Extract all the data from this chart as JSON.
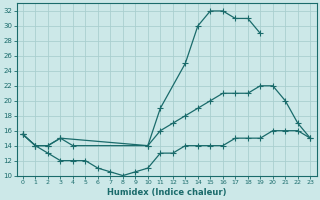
{
  "xlabel": "Humidex (Indice chaleur)",
  "background_color": "#cce8e8",
  "grid_color": "#aacfcf",
  "line_color": "#1a6b6b",
  "xlim": [
    -0.5,
    23.5
  ],
  "ylim": [
    10,
    33
  ],
  "yticks": [
    10,
    12,
    14,
    16,
    18,
    20,
    22,
    24,
    26,
    28,
    30,
    32
  ],
  "xticks": [
    0,
    1,
    2,
    3,
    4,
    5,
    6,
    7,
    8,
    9,
    10,
    11,
    12,
    13,
    14,
    15,
    16,
    17,
    18,
    19,
    20,
    21,
    22,
    23
  ],
  "line1_x": [
    0,
    1,
    2,
    3,
    4,
    10,
    11,
    13,
    14,
    15,
    16,
    17,
    18,
    19
  ],
  "line1_y": [
    15.5,
    14,
    14,
    15,
    14,
    14,
    19,
    25,
    30,
    32,
    32,
    31,
    31,
    29
  ],
  "line2_x": [
    0,
    1,
    2,
    3,
    10,
    11,
    12,
    13,
    14,
    15,
    16,
    17,
    18,
    19,
    20,
    21,
    22,
    23
  ],
  "line2_y": [
    15.5,
    14,
    14,
    15,
    14,
    16,
    17,
    18,
    19,
    20,
    21,
    21,
    21,
    22,
    22,
    20,
    17,
    15
  ],
  "line3_x": [
    0,
    1,
    2,
    3,
    4,
    5,
    6,
    7,
    8,
    9,
    10,
    11,
    12,
    13,
    14,
    15,
    16,
    17,
    18,
    19,
    20,
    21,
    22,
    23
  ],
  "line3_y": [
    15.5,
    14,
    13,
    12,
    12,
    12,
    11,
    10.5,
    10,
    10.5,
    11,
    13,
    13,
    14,
    14,
    14,
    14,
    15,
    15,
    15,
    16,
    16,
    16,
    15
  ]
}
